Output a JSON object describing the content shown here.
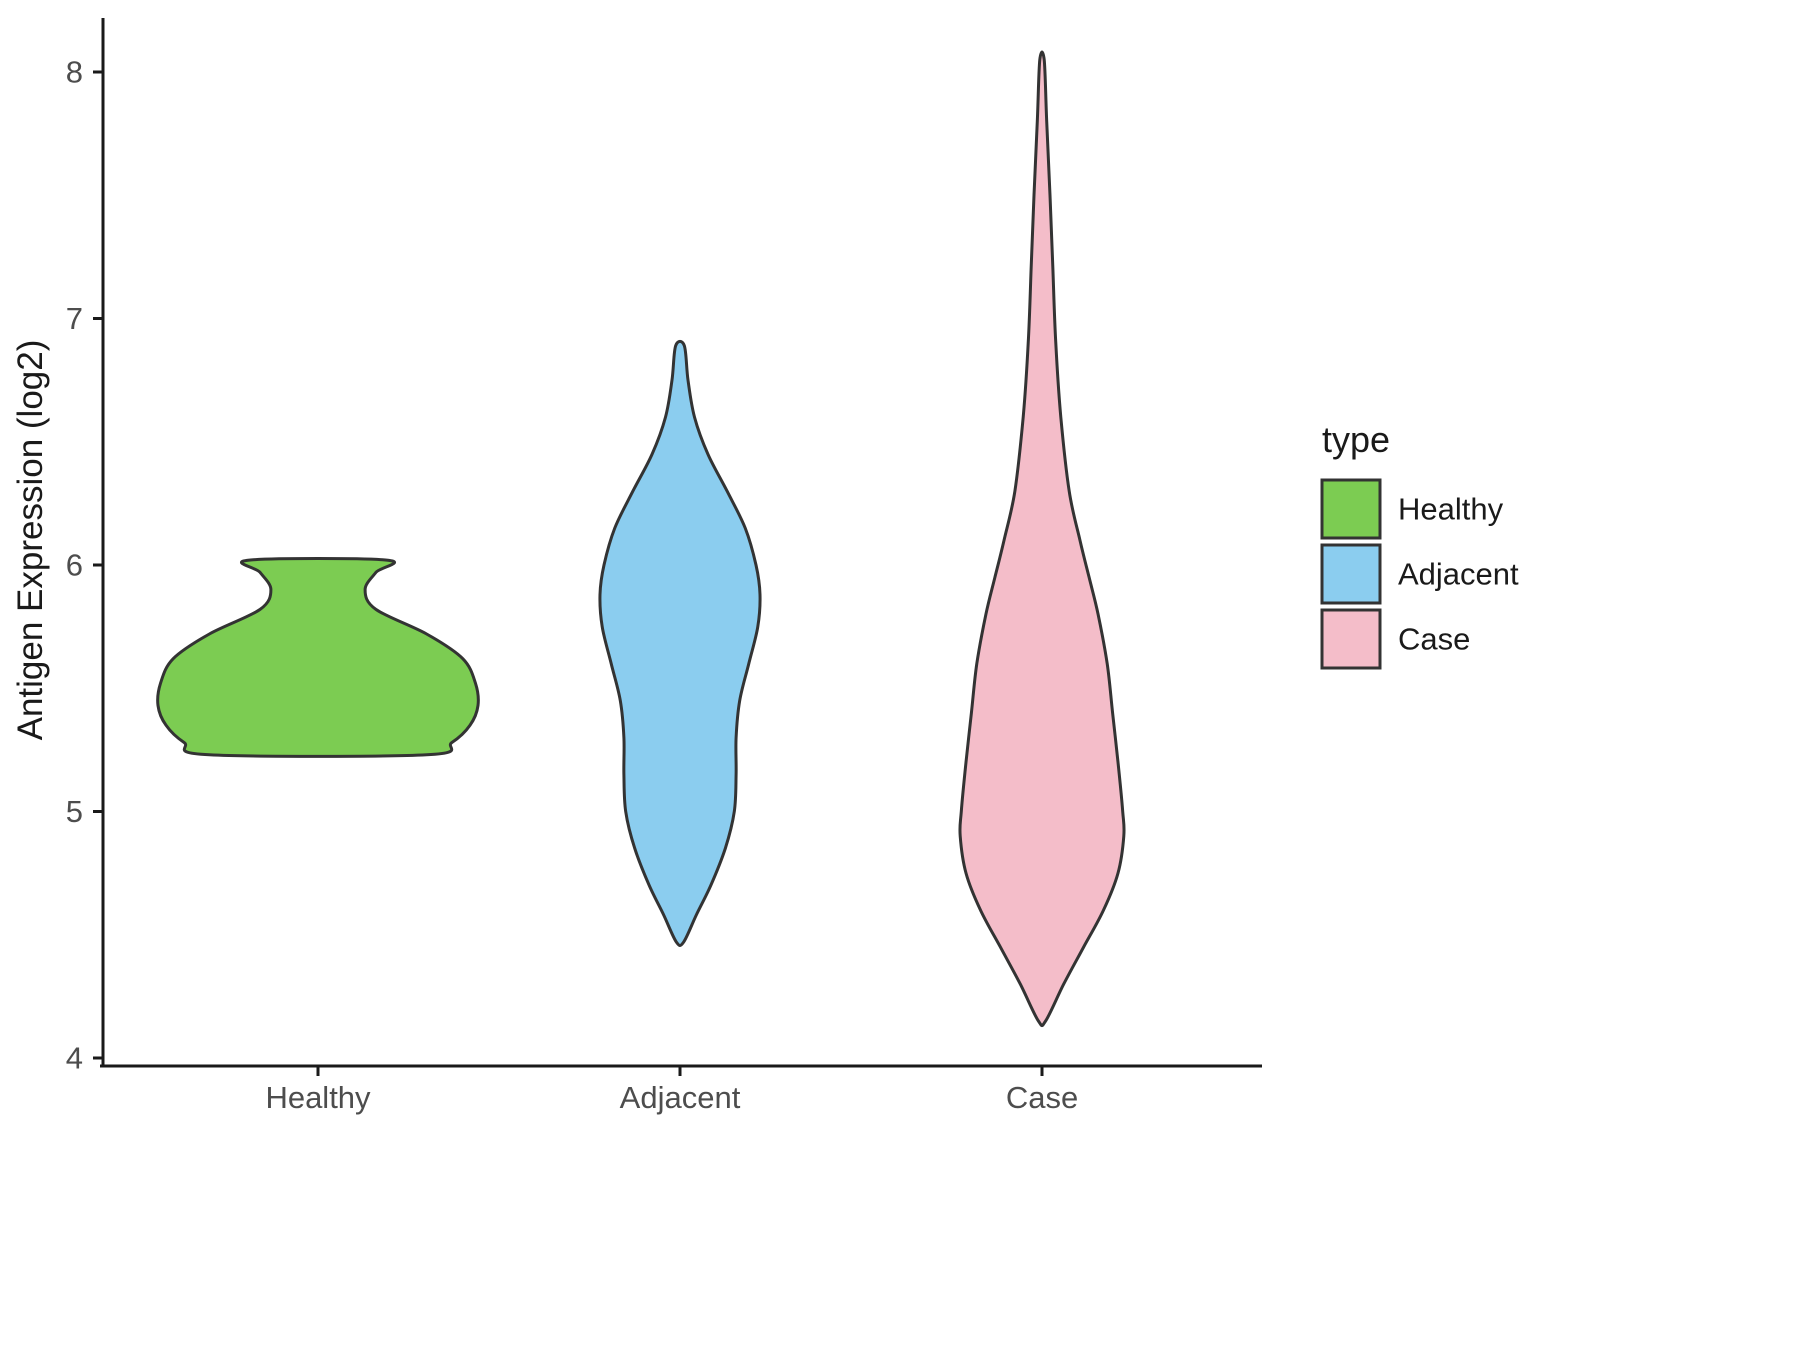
{
  "chart_data": {
    "type": "violin",
    "title": "",
    "xlabel": "",
    "ylabel": "Antigen Expression (log2)",
    "ylim": [
      4,
      8.2
    ],
    "yticks": [
      4,
      5,
      6,
      7,
      8
    ],
    "categories": [
      "Healthy",
      "Adjacent",
      "Case"
    ],
    "grid": false,
    "legend": {
      "title": "type",
      "position": "right",
      "entries": [
        {
          "label": "Healthy",
          "color": "#7CCC52"
        },
        {
          "label": "Adjacent",
          "color": "#8BCDEF"
        },
        {
          "label": "Case",
          "color": "#F4BDC9"
        }
      ]
    },
    "style": {
      "outline_color": "#333333",
      "axis_color": "#1a1a1a",
      "tick_label_color": "#4D4D4D",
      "title_text_color": "#1a1a1a",
      "background": "#FFFFFF"
    },
    "series": [
      {
        "name": "Healthy",
        "color": "#7CCC52",
        "value_range": [
          5.23,
          6.02
        ],
        "profile": [
          [
            6.02,
            0.19
          ],
          [
            5.97,
            0.16
          ],
          [
            5.9,
            0.13
          ],
          [
            5.82,
            0.16
          ],
          [
            5.72,
            0.3
          ],
          [
            5.62,
            0.4
          ],
          [
            5.52,
            0.435
          ],
          [
            5.43,
            0.442
          ],
          [
            5.35,
            0.42
          ],
          [
            5.28,
            0.37
          ],
          [
            5.23,
            0.3
          ]
        ]
      },
      {
        "name": "Adjacent",
        "color": "#8BCDEF",
        "value_range": [
          4.47,
          6.89
        ],
        "profile": [
          [
            6.89,
            0.012
          ],
          [
            6.75,
            0.022
          ],
          [
            6.6,
            0.04
          ],
          [
            6.45,
            0.077
          ],
          [
            6.3,
            0.13
          ],
          [
            6.15,
            0.18
          ],
          [
            6.0,
            0.21
          ],
          [
            5.88,
            0.221
          ],
          [
            5.75,
            0.215
          ],
          [
            5.6,
            0.19
          ],
          [
            5.45,
            0.165
          ],
          [
            5.3,
            0.155
          ],
          [
            5.15,
            0.155
          ],
          [
            5.0,
            0.15
          ],
          [
            4.85,
            0.125
          ],
          [
            4.7,
            0.085
          ],
          [
            4.58,
            0.045
          ],
          [
            4.47,
            0.01
          ]
        ]
      },
      {
        "name": "Case",
        "color": "#F4BDC9",
        "value_range": [
          4.15,
          8.05
        ],
        "profile": [
          [
            8.05,
            0.006
          ],
          [
            7.8,
            0.013
          ],
          [
            7.5,
            0.022
          ],
          [
            7.2,
            0.03
          ],
          [
            6.9,
            0.038
          ],
          [
            6.6,
            0.052
          ],
          [
            6.3,
            0.075
          ],
          [
            6.1,
            0.105
          ],
          [
            5.95,
            0.13
          ],
          [
            5.8,
            0.155
          ],
          [
            5.6,
            0.18
          ],
          [
            5.4,
            0.195
          ],
          [
            5.2,
            0.21
          ],
          [
            5.0,
            0.223
          ],
          [
            4.9,
            0.226
          ],
          [
            4.75,
            0.21
          ],
          [
            4.6,
            0.17
          ],
          [
            4.45,
            0.115
          ],
          [
            4.3,
            0.06
          ],
          [
            4.15,
            0.01
          ]
        ]
      }
    ]
  }
}
